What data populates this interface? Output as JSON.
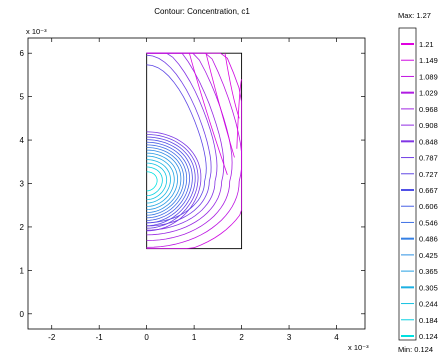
{
  "chart_data": {
    "type": "contour",
    "title": "Contour: Concentration, c1",
    "x_exponent_label": "x 10⁻³",
    "y_exponent_label": "x 10⁻³",
    "xlim": [
      -2.5,
      4.6
    ],
    "ylim": [
      -0.35,
      6.35
    ],
    "x_ticks": [
      -2,
      -1,
      0,
      1,
      2,
      3,
      4
    ],
    "y_ticks": [
      0,
      1,
      2,
      3,
      4,
      5,
      6
    ],
    "domain_rectangle": {
      "x": [
        0,
        2
      ],
      "y": [
        1.5,
        6
      ]
    },
    "source_center": [
      0,
      3.05
    ],
    "colorbar": {
      "max_label": "Max: 1.27",
      "min_label": "Min: 0.124",
      "levels": [
        "1.21",
        "1.149",
        "1.089",
        "1.029",
        "0.968",
        "0.908",
        "0.848",
        "0.787",
        "0.727",
        "0.667",
        "0.606",
        "0.546",
        "0.486",
        "0.425",
        "0.365",
        "0.305",
        "0.244",
        "0.184",
        "0.124"
      ],
      "color_top": "#e000e0",
      "color_bottom": "#00e0e0"
    }
  }
}
